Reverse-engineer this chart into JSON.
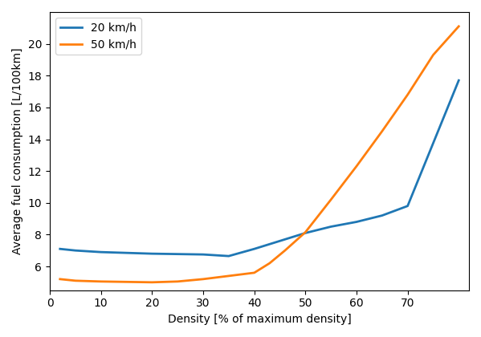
{
  "series": [
    {
      "label": "20 km/h",
      "color": "#1f77b4",
      "x": [
        2,
        5,
        10,
        20,
        30,
        35,
        40,
        45,
        50,
        55,
        60,
        65,
        70,
        80
      ],
      "y": [
        7.1,
        7.0,
        6.9,
        6.8,
        6.75,
        6.65,
        7.1,
        7.6,
        8.1,
        8.5,
        8.8,
        9.2,
        9.8,
        17.7
      ]
    },
    {
      "label": "50 km/h",
      "color": "#ff7f0e",
      "x": [
        2,
        5,
        10,
        20,
        25,
        30,
        35,
        40,
        43,
        46,
        50,
        55,
        60,
        65,
        70,
        75,
        80
      ],
      "y": [
        5.2,
        5.1,
        5.05,
        5.0,
        5.05,
        5.2,
        5.4,
        5.6,
        6.2,
        7.0,
        8.15,
        10.2,
        12.3,
        14.5,
        16.8,
        19.3,
        21.1
      ]
    }
  ],
  "xlabel": "Density [% of maximum density]",
  "ylabel": "Average fuel consumption [L/100km]",
  "xlim": [
    0,
    82
  ],
  "ylim": [
    4.5,
    22.0
  ],
  "yticks": [
    6,
    8,
    10,
    12,
    14,
    16,
    18,
    20
  ],
  "xticks": [
    0,
    10,
    20,
    30,
    40,
    50,
    60,
    70
  ],
  "linewidth": 2.0,
  "legend_loc": "upper left"
}
